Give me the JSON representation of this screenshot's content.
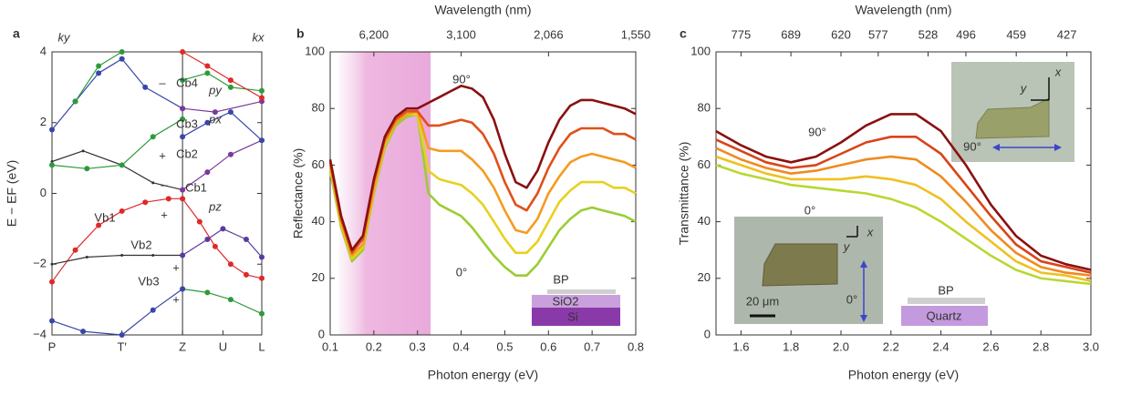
{
  "chart_data": [
    {
      "type": "line",
      "label": "a",
      "ylabel": "E − EF (eV)",
      "markers": true,
      "vline_tick": 2,
      "xlim": [
        0,
        2.7
      ],
      "ylim": [
        -4,
        4
      ],
      "xticks": [
        {
          "value": 0,
          "label": "P"
        },
        {
          "value": 0.9,
          "label": "T′"
        },
        {
          "value": 1.68,
          "label": "Z"
        },
        {
          "value": 2.2,
          "label": "U"
        },
        {
          "value": 2.7,
          "label": "L"
        }
      ],
      "yticks": [
        {
          "value": -4,
          "label": "−4"
        },
        {
          "value": -2,
          "label": "−2"
        },
        0,
        2,
        4
      ],
      "series": [
        {
          "color": "#e02828",
          "x": [
            0,
            0.3,
            0.6,
            0.9,
            1.2,
            1.5,
            1.68,
            1.9,
            2.1,
            2.3,
            2.5,
            2.7
          ],
          "values": [
            -2.5,
            -1.6,
            -0.9,
            -0.5,
            -0.25,
            -0.15,
            -0.15,
            -0.8,
            -1.5,
            -2.0,
            -2.3,
            -2.4
          ]
        },
        {
          "color": "#333333",
          "x": [
            0,
            0.45,
            0.9,
            1.3,
            1.68
          ],
          "values": [
            -2.0,
            -1.8,
            -1.75,
            -1.75,
            -1.75
          ]
        },
        {
          "color": "#5a3aa0",
          "x": [
            1.68,
            2.0,
            2.2,
            2.5,
            2.7
          ],
          "values": [
            -1.75,
            -1.3,
            -1.0,
            -1.3,
            -1.8
          ]
        },
        {
          "color": "#2e9a3a",
          "x": [
            1.68,
            2.0,
            2.3,
            2.7
          ],
          "values": [
            -2.7,
            -2.8,
            -3.0,
            -3.4
          ]
        },
        {
          "color": "#3a46a8",
          "x": [
            0,
            0.4,
            0.9,
            1.3,
            1.68
          ],
          "values": [
            -3.6,
            -3.9,
            -4.0,
            -3.3,
            -2.7
          ]
        },
        {
          "color": "#333333",
          "x": [
            0,
            0.4,
            0.9,
            1.3,
            1.68
          ],
          "values": [
            0.9,
            1.2,
            0.8,
            0.3,
            0.1
          ]
        },
        {
          "color": "#7a3a9a",
          "x": [
            1.68,
            2.0,
            2.3,
            2.7
          ],
          "values": [
            0.1,
            0.6,
            1.1,
            1.5
          ]
        },
        {
          "color": "#2e9a3a",
          "x": [
            0,
            0.45,
            0.9,
            1.3,
            1.68
          ],
          "values": [
            0.8,
            0.7,
            0.8,
            1.6,
            2.1
          ]
        },
        {
          "color": "#3a46a8",
          "x": [
            1.68,
            2.0,
            2.3,
            2.7
          ],
          "values": [
            1.6,
            2.0,
            2.3,
            1.5
          ]
        },
        {
          "color": "#3a46a8",
          "x": [
            0,
            0.3,
            0.6,
            0.9,
            1.2,
            1.68
          ],
          "values": [
            1.8,
            2.6,
            3.4,
            3.8,
            3.0,
            2.4
          ]
        },
        {
          "color": "#7a3a9a",
          "x": [
            1.68,
            2.1,
            2.7
          ],
          "values": [
            2.4,
            2.3,
            2.6
          ]
        },
        {
          "color": "#2e9a3a",
          "x": [
            0.3,
            0.6,
            0.9
          ],
          "values": [
            2.6,
            3.6,
            4.0
          ]
        },
        {
          "color": "#2e9a3a",
          "x": [
            1.68,
            2.0,
            2.3,
            2.7
          ],
          "values": [
            3.2,
            3.4,
            3.0,
            2.9
          ]
        },
        {
          "color": "#e02828",
          "x": [
            1.68,
            2.0,
            2.3,
            2.7
          ],
          "values": [
            4.0,
            3.6,
            3.2,
            2.7
          ]
        }
      ],
      "annotations": [
        "ky",
        "kx",
        "Cb4",
        "Cb3",
        "Cb2",
        "Cb1",
        "Vb1",
        "Vb2",
        "Vb3",
        "py",
        "px",
        "pz",
        "–",
        "–",
        "+",
        "+",
        "+",
        "+"
      ]
    },
    {
      "type": "line",
      "label": "b",
      "xlabel": "Photon energy (eV)",
      "ylabel": "Reflectance (%)",
      "x2label": "Wavelength (nm)",
      "xlim": [
        0.1,
        0.8
      ],
      "ylim": [
        0,
        100
      ],
      "x2lim": [
        12400,
        1550
      ],
      "x2scale": "reciprocal",
      "shaded_region": [
        0.12,
        0.33
      ],
      "xticks": [
        0.1,
        0.2,
        0.3,
        0.4,
        0.5,
        0.6,
        0.7,
        0.8
      ],
      "yticks": [
        0,
        20,
        40,
        60,
        80,
        100
      ],
      "x2ticks": [
        {
          "value": 6200,
          "label": "6,200"
        },
        {
          "value": 3100,
          "label": "3,100"
        },
        {
          "value": 2066,
          "label": "2,066"
        },
        {
          "value": 1550,
          "label": "1,550"
        }
      ],
      "x": [
        0.1,
        0.125,
        0.15,
        0.175,
        0.2,
        0.225,
        0.25,
        0.275,
        0.3,
        0.325,
        0.35,
        0.375,
        0.4,
        0.425,
        0.45,
        0.475,
        0.5,
        0.525,
        0.55,
        0.575,
        0.6,
        0.625,
        0.65,
        0.675,
        0.7,
        0.725,
        0.75,
        0.775,
        0.8
      ],
      "series": [
        {
          "color": "#9acd32",
          "values": [
            58,
            38,
            26,
            30,
            50,
            66,
            74,
            77,
            78,
            50,
            46,
            44,
            42,
            38,
            33,
            28,
            24,
            21,
            21,
            25,
            31,
            37,
            41,
            44,
            45,
            44,
            43,
            42,
            40
          ]
        },
        {
          "color": "#e8d020",
          "values": [
            59,
            39,
            27,
            31,
            51,
            67,
            75,
            78,
            78,
            58,
            55,
            54,
            53,
            50,
            46,
            40,
            34,
            29,
            29,
            33,
            40,
            47,
            51,
            54,
            54,
            54,
            52,
            52,
            50
          ]
        },
        {
          "color": "#f59b20",
          "values": [
            60,
            40,
            28,
            32,
            52,
            68,
            75,
            78,
            79,
            66,
            65,
            65,
            65,
            62,
            58,
            52,
            44,
            37,
            36,
            41,
            50,
            56,
            61,
            63,
            64,
            63,
            62,
            61,
            59
          ]
        },
        {
          "color": "#e0501a",
          "values": [
            61,
            41,
            29,
            34,
            54,
            69,
            76,
            79,
            79,
            74,
            74,
            75,
            76,
            75,
            71,
            64,
            54,
            46,
            44,
            50,
            59,
            66,
            71,
            73,
            73,
            73,
            71,
            71,
            69
          ]
        },
        {
          "color": "#8b1010",
          "values": [
            62,
            42,
            30,
            35,
            55,
            70,
            77,
            80,
            80,
            82,
            84,
            86,
            88,
            87,
            84,
            76,
            64,
            54,
            52,
            58,
            68,
            76,
            81,
            83,
            83,
            82,
            81,
            80,
            78
          ]
        }
      ],
      "annotations": [
        "90°",
        "0°",
        "BP",
        "SiO2",
        "Si"
      ]
    },
    {
      "type": "line",
      "label": "c",
      "xlabel": "Photon energy (eV)",
      "ylabel": "Transmittance (%)",
      "x2label": "Wavelength (nm)",
      "xlim": [
        1.5,
        3.0
      ],
      "ylim": [
        0,
        100
      ],
      "x2lim": [
        826.7,
        413.3
      ],
      "x2scale": "reciprocal",
      "xticks": [
        1.6,
        1.8,
        {
          "value": 2,
          "label": "2.0"
        },
        2.2,
        2.4,
        2.6,
        2.8,
        {
          "value": 3,
          "label": "3.0"
        }
      ],
      "yticks": [
        0,
        20,
        40,
        60,
        80,
        100
      ],
      "x2ticks": [
        775,
        689,
        620,
        577,
        528,
        496,
        459,
        427
      ],
      "x": [
        1.5,
        1.6,
        1.7,
        1.8,
        1.9,
        2.0,
        2.1,
        2.2,
        2.3,
        2.4,
        2.5,
        2.6,
        2.7,
        2.8,
        2.9,
        3.0
      ],
      "series": [
        {
          "color": "#b8d830",
          "values": [
            60,
            57,
            55,
            53,
            52,
            51,
            50,
            48,
            45,
            40,
            34,
            28,
            23,
            20,
            19,
            18
          ]
        },
        {
          "color": "#f0c020",
          "values": [
            63,
            60,
            57,
            55,
            55,
            55,
            56,
            55,
            53,
            48,
            40,
            33,
            26,
            22,
            21,
            19
          ]
        },
        {
          "color": "#f08a20",
          "values": [
            66,
            62,
            59,
            57,
            58,
            60,
            62,
            63,
            62,
            56,
            47,
            37,
            29,
            24,
            22,
            21
          ]
        },
        {
          "color": "#d84418",
          "values": [
            69,
            65,
            61,
            59,
            60,
            64,
            68,
            70,
            70,
            64,
            53,
            42,
            32,
            26,
            24,
            22
          ]
        },
        {
          "color": "#8b1010",
          "values": [
            72,
            67,
            63,
            61,
            63,
            68,
            74,
            78,
            78,
            72,
            60,
            46,
            35,
            28,
            25,
            23
          ]
        }
      ],
      "annotations": [
        "90°",
        "0°",
        "x",
        "y",
        "90°",
        "x",
        "y",
        "20 μm",
        "0°",
        "BP",
        "Quartz"
      ]
    }
  ]
}
